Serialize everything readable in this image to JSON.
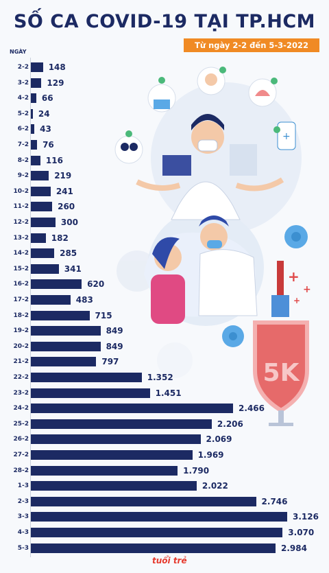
{
  "header": {
    "title": "SỐ CA COVID-19 TẠI TP.HCM",
    "date_range": "Từ ngày 2-2 đến 5-3-2022",
    "axis_label": "NGÀY"
  },
  "colors": {
    "bar": "#1c2a63",
    "accent": "#f08a24",
    "brand": "#e63a2e"
  },
  "logo_text": "tuổi trẻ",
  "chart_data": {
    "type": "bar",
    "orientation": "horizontal",
    "title": "SỐ CA COVID-19 TẠI TP.HCM",
    "subtitle": "Từ ngày 2-2 đến 5-3-2022",
    "ylabel": "NGÀY",
    "categories": [
      "2-2",
      "3-2",
      "4-2",
      "5-2",
      "6-2",
      "7-2",
      "8-2",
      "9-2",
      "10-2",
      "11-2",
      "12-2",
      "13-2",
      "14-2",
      "15-2",
      "16-2",
      "17-2",
      "18-2",
      "19-2",
      "20-2",
      "21-2",
      "22-2",
      "23-2",
      "24-2",
      "25-2",
      "26-2",
      "27-2",
      "28-2",
      "1-3",
      "2-3",
      "3-3",
      "4-3",
      "5-3"
    ],
    "values": [
      148,
      129,
      66,
      24,
      43,
      76,
      116,
      219,
      241,
      260,
      300,
      182,
      285,
      341,
      620,
      483,
      715,
      849,
      849,
      797,
      1352,
      1451,
      2466,
      2206,
      2069,
      1969,
      1790,
      2022,
      2746,
      3126,
      3070,
      2984
    ],
    "value_labels": [
      "148",
      "129",
      "66",
      "24",
      "43",
      "76",
      "116",
      "219",
      "241",
      "260",
      "300",
      "182",
      "285",
      "341",
      "620",
      "483",
      "715",
      "849",
      "849",
      "797",
      "1.352",
      "1.451",
      "2.466",
      "2.206",
      "2.069",
      "1.969",
      "1.790",
      "2.022",
      "2.746",
      "3.126",
      "3.070",
      "2.984"
    ],
    "grid": false
  }
}
